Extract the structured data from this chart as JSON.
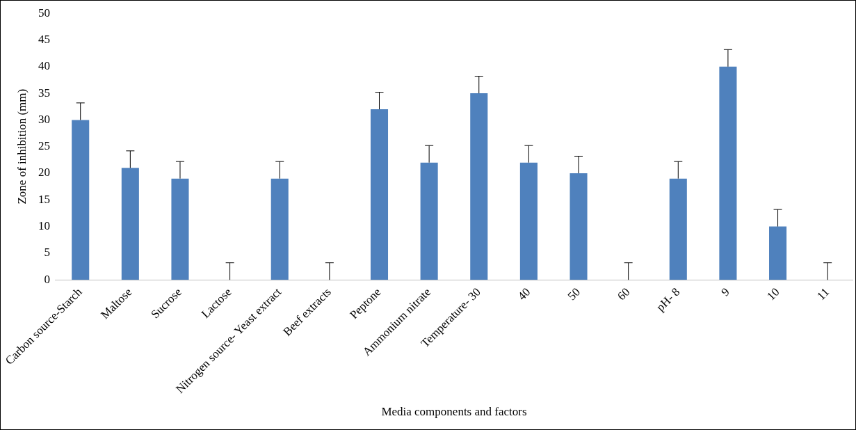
{
  "chart_data": {
    "type": "bar",
    "xlabel": "Media components and factors",
    "ylabel": "Zone of inhibition (mm)",
    "categories": [
      "Carbon source-Starch",
      "Maltose",
      "Sucrose",
      "Lactose",
      "Nitrogen source- Yeast extract",
      "Beef extracts",
      "Peptone",
      "Ammonium nitrate",
      "Temperature- 30",
      "40",
      "50",
      "60",
      "pH- 8",
      "9",
      "10",
      "11"
    ],
    "values": [
      30,
      21,
      19,
      0,
      19,
      0,
      32,
      22,
      35,
      22,
      20,
      0,
      19,
      40,
      10,
      0
    ],
    "errors": [
      [
        30,
        33.2
      ],
      [
        21,
        24.2
      ],
      [
        19,
        22.2
      ],
      [
        0,
        3.2
      ],
      [
        19,
        22.2
      ],
      [
        0,
        3.2
      ],
      [
        32,
        35.2
      ],
      [
        22,
        25.2
      ],
      [
        35,
        38.2
      ],
      [
        22,
        25.2
      ],
      [
        20,
        23.2
      ],
      [
        0,
        3.2
      ],
      [
        19,
        22.2
      ],
      [
        40,
        43.2
      ],
      [
        10,
        13.2
      ],
      [
        0,
        3.2
      ]
    ],
    "color": "#4f81bd",
    "ylim": [
      0,
      50
    ],
    "yticks": [
      0,
      5,
      10,
      15,
      20,
      25,
      30,
      35,
      40,
      45,
      50
    ],
    "grid": false,
    "legend": false
  }
}
